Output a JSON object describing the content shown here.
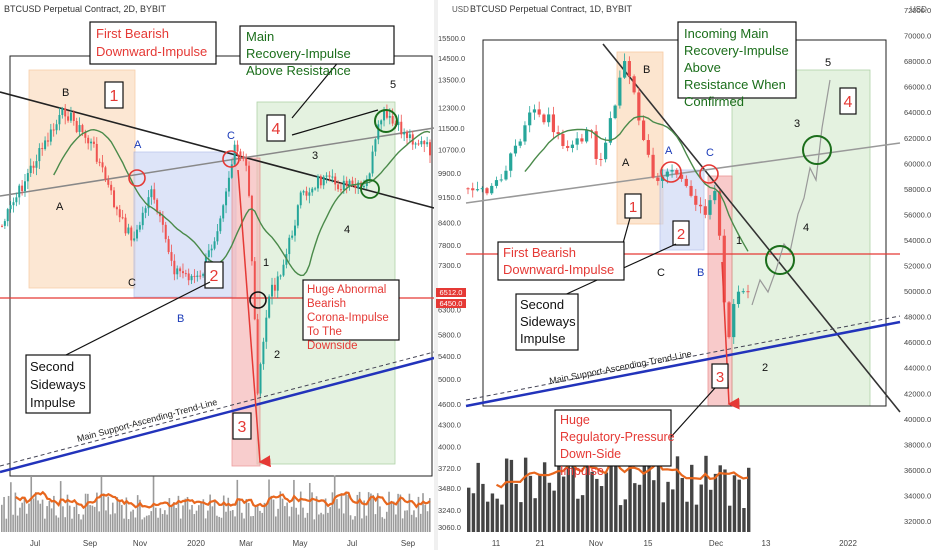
{
  "left_panel": {
    "symbol": "BTCUSD Perpetual Contract, 2D, BYBIT",
    "currency": "USD",
    "y_ticks": [
      3060,
      3240,
      3480,
      3720,
      4000,
      4300,
      4600,
      5000,
      5400,
      5800,
      6300,
      7300,
      7800,
      8400,
      9150,
      9900,
      10700,
      11500,
      12300,
      13500,
      14500,
      15500
    ],
    "x_ticks": [
      "Jul",
      "Sep",
      "Nov",
      "2020",
      "Mar",
      "May",
      "Jul",
      "Sep"
    ],
    "price_labels": [
      "6512.0",
      "6450.0"
    ],
    "wave_labels": [
      "A",
      "B",
      "C",
      "A",
      "B",
      "C",
      "1",
      "2",
      "3",
      "4",
      "5"
    ],
    "impulse_numbers": [
      "1",
      "2",
      "3",
      "4"
    ],
    "callouts": {
      "first_bearish": "First Bearish Downward-Impulse",
      "main_recovery": "Main Recovery-Impulse Above Resistance",
      "second_sideways": "Second Sideways Impulse",
      "corona": "Huge Abnormal Bearish Corona-Impulse To The Downside"
    },
    "trendline_label": "Main Support-Ascending-Trend-Line"
  },
  "right_panel": {
    "symbol": "BTCUSD Perpetual Contract, 1D, BYBIT",
    "currency": "USD",
    "y_ticks": [
      32000,
      34000,
      36000,
      38000,
      40000,
      42000,
      44000,
      46000,
      48000,
      50000,
      52000,
      54000,
      56000,
      58000,
      60000,
      62000,
      64000,
      66000,
      68000,
      70000,
      72000
    ],
    "x_ticks": [
      "11",
      "21",
      "Nov",
      "15",
      "Dec",
      "13",
      "2022"
    ],
    "wave_labels": [
      "A",
      "B",
      "C",
      "A",
      "B",
      "C",
      "1",
      "2",
      "3",
      "4",
      "5"
    ],
    "impulse_numbers": [
      "1",
      "2",
      "3",
      "4"
    ],
    "callouts": {
      "first_bearish": "First Bearish Downward-Impulse",
      "incoming": "Incoming Main Recovery-Impulse Above Resistance When Confirmed",
      "second_sideways": "Second Sideways Impulse",
      "regulatory": "Huge Regulatory-Pressure Down-Side Impulse"
    },
    "trendline_label": "Main Support-Ascending-Trend-Line"
  },
  "colors": {
    "up": "#26a69a",
    "down": "#ef5350",
    "ma": "#4a8a4a",
    "volume_ma": "#e8671e",
    "support": "#2233bb",
    "red_level": "#e53935",
    "callout_red": "#e53935",
    "callout_green": "#1b6e1b",
    "box_orange": "#fbd5b0",
    "box_blue": "#c7d3f5",
    "box_green": "#cfe8c7",
    "box_red": "#f6b9b9"
  },
  "chart_data": [
    {
      "type": "candlestick",
      "title": "BTCUSD Perpetual Contract, 2D, BYBIT",
      "x_ticks": [
        "Jul",
        "Sep",
        "Nov",
        "2020",
        "Mar",
        "May",
        "Jul",
        "Sep"
      ],
      "ylim": [
        3000,
        16000
      ],
      "waypoints": [
        {
          "x": "Jul",
          "y": 11500
        },
        {
          "x": "Aug",
          "y": 9900
        },
        {
          "x": "Sep",
          "y": 10200
        },
        {
          "x": "Oct",
          "y": 8200
        },
        {
          "x": "Oct",
          "y": 9900
        },
        {
          "x": "Nov",
          "y": 7300
        },
        {
          "x": "Dec",
          "y": 7200
        },
        {
          "x": "2020",
          "y": 7400
        },
        {
          "x": "Feb",
          "y": 10400
        },
        {
          "x": "Mar",
          "y": 3900
        },
        {
          "x": "Apr",
          "y": 7100
        },
        {
          "x": "May",
          "y": 9500
        },
        {
          "x": "Jun",
          "y": 9300
        },
        {
          "x": "Jul",
          "y": 9200
        },
        {
          "x": "Aug",
          "y": 12000
        },
        {
          "x": "Sep",
          "y": 10500
        }
      ],
      "levels": [
        6512.0,
        6450.0
      ]
    },
    {
      "type": "candlestick",
      "title": "BTCUSD Perpetual Contract, 1D, BYBIT",
      "x_ticks": [
        "11",
        "21",
        "Nov",
        "15",
        "Dec",
        "13",
        "2022"
      ],
      "ylim": [
        32000,
        72000
      ],
      "waypoints": [
        {
          "x": "11",
          "y": 58000
        },
        {
          "x": "21",
          "y": 65000
        },
        {
          "x": "Nov",
          "y": 61000
        },
        {
          "x": "15",
          "y": 66500
        },
        {
          "x": "15",
          "y": 56000
        },
        {
          "x": "Dec",
          "y": 57000
        },
        {
          "x": "Dec",
          "y": 43000
        },
        {
          "x": "13",
          "y": 48000
        }
      ]
    }
  ]
}
